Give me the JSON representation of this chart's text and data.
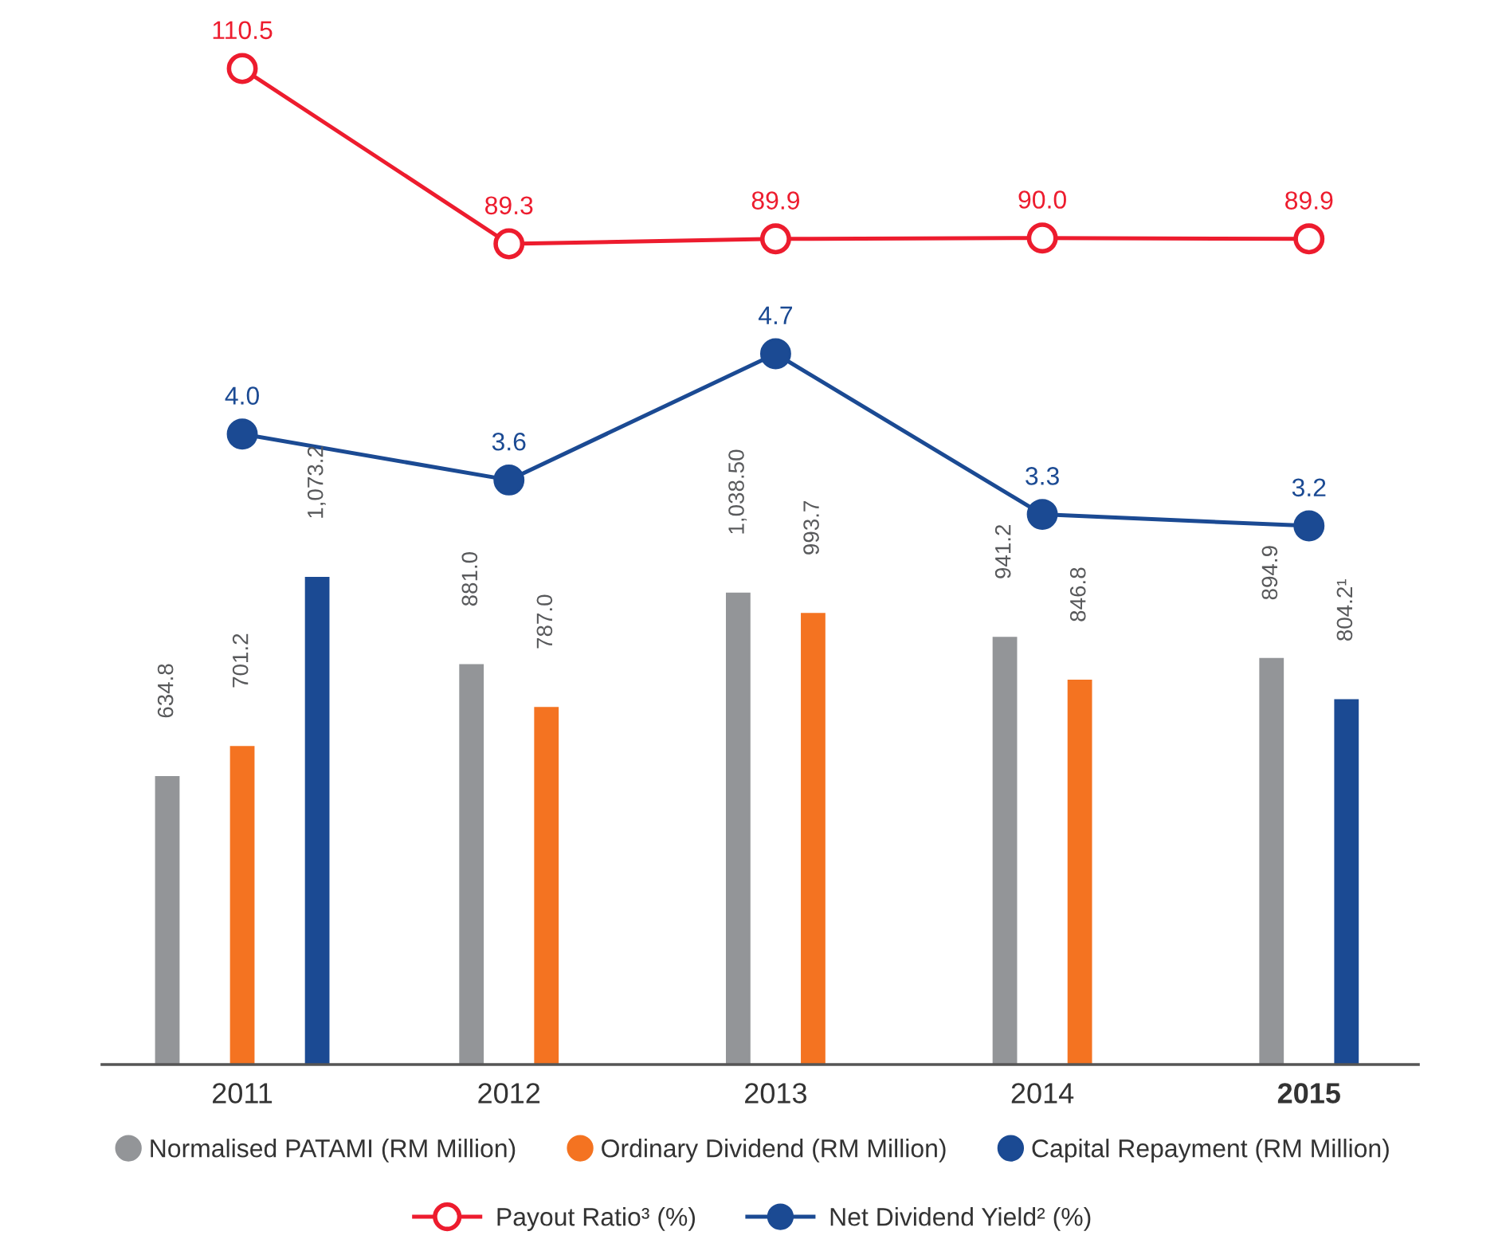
{
  "chart_data": [
    {
      "type": "line",
      "categories": [
        "2011",
        "2012",
        "2013",
        "2014",
        "2015"
      ],
      "tick_labels": false,
      "grid": false,
      "legend": "bottom",
      "series": [
        {
          "name": "Payout Ratio³ (%)",
          "type": "line",
          "marker": "circle",
          "color": "#ed1c2e",
          "values": [
            110.5,
            89.3,
            89.9,
            90.0,
            89.9
          ],
          "value_labels": [
            "110.5",
            "89.3",
            "89.9",
            "90.0",
            "89.9"
          ]
        }
      ]
    },
    {
      "type": "line",
      "categories": [
        "2011",
        "2012",
        "2013",
        "2014",
        "2015"
      ],
      "tick_labels": false,
      "grid": false,
      "legend": "bottom",
      "series": [
        {
          "name": "Net Dividend Yield² (%)",
          "type": "line",
          "marker": "circle",
          "color": "#1b4a93",
          "values": [
            4.0,
            3.6,
            4.7,
            3.3,
            3.2
          ],
          "value_labels": [
            "4.0",
            "3.6",
            "4.7",
            "3.3",
            "3.2"
          ]
        }
      ]
    },
    {
      "type": "bar",
      "categories": [
        "2011",
        "2012",
        "2013",
        "2014",
        "2015"
      ],
      "tick_labels": "x",
      "grid": false,
      "legend": "bottom",
      "series": [
        {
          "name": "Normalised PATAMI (RM Million)",
          "color": "#939598",
          "values": [
            634.8,
            881.0,
            1038.5,
            941.2,
            894.9
          ],
          "value_labels": [
            "634.8",
            "881.0",
            "1,038.50",
            "941.2",
            "894.9"
          ]
        },
        {
          "name": "Ordinary Dividend (RM Million)",
          "color": "#f47321",
          "values": [
            701.2,
            787.0,
            993.7,
            846.8,
            null
          ],
          "value_labels": [
            "701.2",
            "787.0",
            "993.7",
            "846.8",
            null
          ]
        },
        {
          "name": "Capital Repayment (RM Million)",
          "color": "#1b4a93",
          "values": [
            1073.2,
            null,
            null,
            null,
            804.2
          ],
          "value_labels": [
            "1,073.2",
            null,
            null,
            null,
            "804.2¹"
          ]
        }
      ]
    }
  ]
}
